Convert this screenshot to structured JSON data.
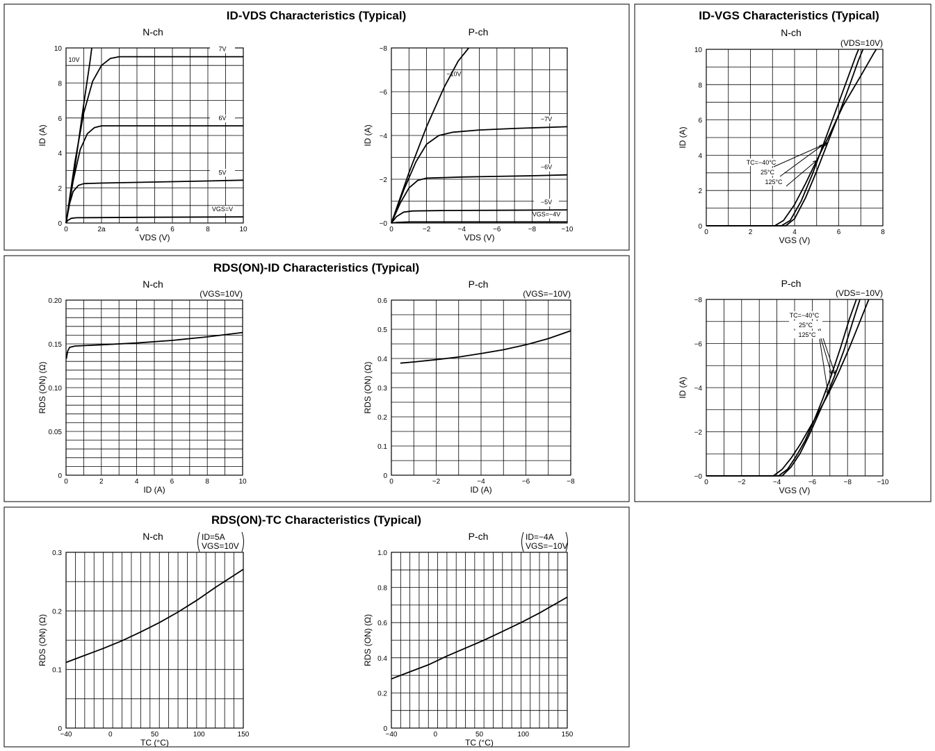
{
  "panels": [
    {
      "id": "p1",
      "title": "ID-VDS Characteristics (Typical)"
    },
    {
      "id": "p2",
      "title": "RDS(ON)-ID Characteristics (Typical)"
    },
    {
      "id": "p3",
      "title": "ID-VGS Characteristics (Typical)"
    },
    {
      "id": "p4",
      "title": "RDS(ON)-TC Characteristics (Typical)"
    }
  ],
  "chart_data": [
    {
      "id": "idvds_n",
      "type": "line",
      "subtitle": "N-ch",
      "condition": [],
      "xlabel": "VDS (V)",
      "ylabel": "ID (A)",
      "xlim": [
        0,
        10
      ],
      "ylim": [
        0,
        10
      ],
      "xticks": [
        "0",
        "2a",
        "4",
        "6",
        "8",
        "10"
      ],
      "yticks": [
        "0",
        "2",
        "4",
        "6",
        "8",
        "10"
      ],
      "grid": {
        "x": 10,
        "y": 10
      },
      "series": [
        {
          "name": "10V",
          "points": [
            [
              0,
              0
            ],
            [
              0.5,
              3.2
            ],
            [
              1.0,
              6.8
            ],
            [
              1.35,
              9.2
            ],
            [
              1.45,
              10
            ]
          ]
        },
        {
          "name": "7V",
          "points": [
            [
              0,
              0
            ],
            [
              0.5,
              3.5
            ],
            [
              1.0,
              6.3
            ],
            [
              1.5,
              8.1
            ],
            [
              2.0,
              9.0
            ],
            [
              2.5,
              9.4
            ],
            [
              3.0,
              9.5
            ],
            [
              4.0,
              9.5
            ],
            [
              6,
              9.5
            ],
            [
              8,
              9.5
            ],
            [
              10,
              9.5
            ]
          ]
        },
        {
          "name": "6V",
          "points": [
            [
              0,
              0
            ],
            [
              0.4,
              2.4
            ],
            [
              0.8,
              4.2
            ],
            [
              1.2,
              5.1
            ],
            [
              1.6,
              5.45
            ],
            [
              2.0,
              5.55
            ],
            [
              3,
              5.55
            ],
            [
              5,
              5.55
            ],
            [
              7,
              5.55
            ],
            [
              10,
              5.55
            ]
          ]
        },
        {
          "name": "5V",
          "points": [
            [
              0,
              0
            ],
            [
              0.2,
              1.1
            ],
            [
              0.4,
              1.8
            ],
            [
              0.7,
              2.15
            ],
            [
              1.0,
              2.25
            ],
            [
              2,
              2.28
            ],
            [
              4,
              2.32
            ],
            [
              6,
              2.36
            ],
            [
              8,
              2.4
            ],
            [
              10,
              2.45
            ]
          ]
        },
        {
          "name": "VGS=V",
          "points": [
            [
              0,
              0
            ],
            [
              0.1,
              0.15
            ],
            [
              0.3,
              0.27
            ],
            [
              0.6,
              0.3
            ],
            [
              2,
              0.31
            ],
            [
              5,
              0.33
            ],
            [
              10,
              0.35
            ]
          ]
        }
      ]
    },
    {
      "id": "idvds_p",
      "type": "line",
      "subtitle": "P-ch",
      "condition": [],
      "xlabel": "VDS (V)",
      "ylabel": "ID (A)",
      "xlim": [
        0,
        -10
      ],
      "ylim": [
        0,
        -8
      ],
      "xticks": [
        "0",
        "−2",
        "−4",
        "−6",
        "−8",
        "−10"
      ],
      "yticks": [
        "−0",
        "−2",
        "−4",
        "−6",
        "−8"
      ],
      "grid": {
        "x": 10,
        "y": 8
      },
      "series": [
        {
          "name": "−10V",
          "points": [
            [
              0,
              0
            ],
            [
              -1,
              -2.3
            ],
            [
              -2,
              -4.4
            ],
            [
              -3,
              -6.2
            ],
            [
              -3.8,
              -7.4
            ],
            [
              -4.4,
              -8
            ]
          ]
        },
        {
          "name": "−7V",
          "points": [
            [
              0,
              0
            ],
            [
              -0.7,
              -1.5
            ],
            [
              -1.4,
              -2.8
            ],
            [
              -2.0,
              -3.6
            ],
            [
              -2.7,
              -4.0
            ],
            [
              -3.5,
              -4.15
            ],
            [
              -5,
              -4.25
            ],
            [
              -7,
              -4.32
            ],
            [
              -10,
              -4.4
            ]
          ]
        },
        {
          "name": "−6V",
          "points": [
            [
              0,
              0
            ],
            [
              -0.5,
              -0.9
            ],
            [
              -1.0,
              -1.6
            ],
            [
              -1.5,
              -1.95
            ],
            [
              -2.0,
              -2.05
            ],
            [
              -4,
              -2.1
            ],
            [
              -6,
              -2.13
            ],
            [
              -8,
              -2.16
            ],
            [
              -10,
              -2.2
            ]
          ]
        },
        {
          "name": "−5V",
          "points": [
            [
              0,
              0
            ],
            [
              -0.3,
              -0.3
            ],
            [
              -0.7,
              -0.5
            ],
            [
              -1.2,
              -0.55
            ],
            [
              -3,
              -0.57
            ],
            [
              -6,
              -0.58
            ],
            [
              -10,
              -0.6
            ]
          ]
        },
        {
          "name": "VGS=−4V",
          "points": [
            [
              0,
              0
            ],
            [
              -0.3,
              -0.03
            ],
            [
              -1,
              -0.05
            ],
            [
              -10,
              -0.05
            ]
          ]
        }
      ]
    },
    {
      "id": "rdsid_n",
      "type": "line",
      "subtitle": "N-ch",
      "condition": [
        "(VGS=10V)"
      ],
      "xlabel": "ID (A)",
      "ylabel": "RDS (ON) (Ω)",
      "xlim": [
        0,
        10
      ],
      "ylim": [
        0,
        0.2
      ],
      "xticks": [
        "0",
        "2",
        "4",
        "6",
        "8",
        "10"
      ],
      "yticks": [
        "0",
        "0.05",
        "0.10",
        "0.15",
        "0.20"
      ],
      "grid": {
        "x": 10,
        "y": 20
      },
      "series": [
        {
          "name": "",
          "points": [
            [
              0.02,
              0.133
            ],
            [
              0.06,
              0.138
            ],
            [
              0.1,
              0.142
            ],
            [
              0.2,
              0.146
            ],
            [
              0.5,
              0.1475
            ],
            [
              1,
              0.148
            ],
            [
              2,
              0.149
            ],
            [
              4,
              0.151
            ],
            [
              6,
              0.154
            ],
            [
              8,
              0.158
            ],
            [
              10,
              0.163
            ]
          ]
        }
      ]
    },
    {
      "id": "rdsid_p",
      "type": "line",
      "subtitle": "P-ch",
      "condition": [
        "(VGS=−10V)"
      ],
      "xlabel": "ID (A)",
      "ylabel": "RDS (ON) (Ω)",
      "xlim": [
        0,
        -8
      ],
      "ylim": [
        0,
        0.6
      ],
      "xticks": [
        "0",
        "−2",
        "−4",
        "−6",
        "−8"
      ],
      "yticks": [
        "0",
        "0.1",
        "0.2",
        "0.3",
        "0.4",
        "0.5",
        "0.6"
      ],
      "grid": {
        "x": 8,
        "y": 12
      },
      "series": [
        {
          "name": "",
          "points": [
            [
              -0.4,
              0.384
            ],
            [
              -1,
              0.388
            ],
            [
              -2,
              0.396
            ],
            [
              -3,
              0.405
            ],
            [
              -4,
              0.417
            ],
            [
              -5,
              0.43
            ],
            [
              -6,
              0.447
            ],
            [
              -7,
              0.468
            ],
            [
              -8,
              0.495
            ]
          ]
        }
      ]
    },
    {
      "id": "idvgs_n",
      "type": "line",
      "subtitle": "N-ch",
      "condition": [
        "(VDS=10V)"
      ],
      "xlabel": "VGS (V)",
      "ylabel": "ID (A)",
      "xlim": [
        0,
        8
      ],
      "ylim": [
        0,
        10
      ],
      "xticks": [
        "0",
        "2",
        "4",
        "6",
        "8"
      ],
      "yticks": [
        "0",
        "2",
        "4",
        "6",
        "8",
        "10"
      ],
      "grid": {
        "x": 8,
        "y": 10
      },
      "annotations": [
        "TC=−40°C",
        "25°C",
        "125°C"
      ],
      "series": [
        {
          "name": "TC=−40°C",
          "points": [
            [
              0,
              0
            ],
            [
              3.6,
              0
            ],
            [
              4.0,
              0.4
            ],
            [
              4.5,
              1.6
            ],
            [
              5.0,
              3.1
            ],
            [
              5.5,
              4.7
            ],
            [
              6.0,
              6.3
            ],
            [
              6.5,
              8.0
            ],
            [
              6.9,
              9.4
            ],
            [
              7.1,
              10
            ]
          ]
        },
        {
          "name": "25°C",
          "points": [
            [
              0,
              0
            ],
            [
              3.4,
              0
            ],
            [
              3.8,
              0.3
            ],
            [
              4.3,
              1.4
            ],
            [
              4.8,
              2.9
            ],
            [
              5.3,
              4.6
            ],
            [
              5.8,
              6.3
            ],
            [
              6.3,
              8.0
            ],
            [
              6.8,
              9.7
            ],
            [
              6.9,
              10
            ]
          ]
        },
        {
          "name": "125°C",
          "points": [
            [
              0,
              0
            ],
            [
              3.1,
              0
            ],
            [
              3.5,
              0.3
            ],
            [
              4.0,
              1.2
            ],
            [
              4.5,
              2.4
            ],
            [
              5.0,
              3.7
            ],
            [
              5.6,
              5.2
            ],
            [
              6.2,
              6.8
            ],
            [
              7.0,
              8.5
            ],
            [
              7.6,
              9.8
            ],
            [
              7.7,
              10
            ]
          ]
        }
      ]
    },
    {
      "id": "idvgs_p",
      "type": "line",
      "subtitle": "P-ch",
      "condition": [
        "(VDS=−10V)"
      ],
      "xlabel": "VGS (V)",
      "ylabel": "ID (A)",
      "xlim": [
        0,
        -10
      ],
      "ylim": [
        0,
        -8
      ],
      "xticks": [
        "0",
        "−2",
        "−4",
        "−6",
        "−8",
        "−10"
      ],
      "yticks": [
        "−0",
        "−2",
        "−4",
        "−6",
        "−8"
      ],
      "grid": {
        "x": 10,
        "y": 8
      },
      "annotations": [
        "TC=−40°C",
        "25°C",
        "125°C"
      ],
      "series": [
        {
          "name": "TC=−40°C",
          "points": [
            [
              0,
              0
            ],
            [
              -4.3,
              0
            ],
            [
              -4.8,
              -0.4
            ],
            [
              -5.3,
              -1.0
            ],
            [
              -5.8,
              -1.8
            ],
            [
              -6.3,
              -2.7
            ],
            [
              -6.8,
              -3.6
            ],
            [
              -7.3,
              -4.6
            ],
            [
              -7.8,
              -5.7
            ],
            [
              -8.3,
              -7.0
            ],
            [
              -8.7,
              -8.0
            ]
          ]
        },
        {
          "name": "25°C",
          "points": [
            [
              0,
              0
            ],
            [
              -4.1,
              0
            ],
            [
              -4.6,
              -0.3
            ],
            [
              -5.1,
              -0.9
            ],
            [
              -5.6,
              -1.6
            ],
            [
              -6.1,
              -2.5
            ],
            [
              -6.6,
              -3.5
            ],
            [
              -7.1,
              -4.6
            ],
            [
              -7.6,
              -5.8
            ],
            [
              -8.1,
              -7.1
            ],
            [
              -8.5,
              -8.0
            ]
          ]
        },
        {
          "name": "125°C",
          "points": [
            [
              0,
              0
            ],
            [
              -3.8,
              0
            ],
            [
              -4.3,
              -0.3
            ],
            [
              -4.8,
              -0.8
            ],
            [
              -5.3,
              -1.4
            ],
            [
              -5.8,
              -2.1
            ],
            [
              -6.3,
              -2.8
            ],
            [
              -6.9,
              -3.7
            ],
            [
              -7.5,
              -4.7
            ],
            [
              -8.1,
              -5.8
            ],
            [
              -8.7,
              -7.0
            ],
            [
              -9.2,
              -8.0
            ]
          ]
        }
      ]
    },
    {
      "id": "rdstc_n",
      "type": "line",
      "subtitle": "N-ch",
      "condition": [
        "ID=5A",
        "VGS=10V"
      ],
      "xlabel": "TC (°C)",
      "ylabel": "RDS (ON) (Ω)",
      "xlim": [
        -40,
        150
      ],
      "ylim": [
        0,
        0.3
      ],
      "xticks": [
        "−40",
        "0",
        "50",
        "100",
        "150"
      ],
      "yticks": [
        "0",
        "0.1",
        "0.2",
        "0.3"
      ],
      "grid": {
        "x": 19,
        "y": 6
      },
      "series": [
        {
          "name": "",
          "points": [
            [
              -40,
              0.112
            ],
            [
              -20,
              0.124
            ],
            [
              0,
              0.136
            ],
            [
              20,
              0.149
            ],
            [
              40,
              0.164
            ],
            [
              60,
              0.18
            ],
            [
              80,
              0.198
            ],
            [
              100,
              0.218
            ],
            [
              120,
              0.24
            ],
            [
              150,
              0.271
            ]
          ]
        }
      ]
    },
    {
      "id": "rdstc_p",
      "type": "line",
      "subtitle": "P-ch",
      "condition": [
        "ID=−4A",
        "VGS=−10V"
      ],
      "xlabel": "TC (°C)",
      "ylabel": "RDS (ON) (Ω)",
      "xlim": [
        -40,
        150
      ],
      "ylim": [
        0,
        1.0
      ],
      "xticks": [
        "−40",
        "0",
        "50",
        "100",
        "150"
      ],
      "yticks": [
        "0",
        "0.2",
        "0.4",
        "0.6",
        "0.8",
        "1.0"
      ],
      "grid": {
        "x": 19,
        "y": 10
      },
      "series": [
        {
          "name": "",
          "points": [
            [
              -40,
              0.28
            ],
            [
              -20,
              0.32
            ],
            [
              0,
              0.36
            ],
            [
              20,
              0.41
            ],
            [
              40,
              0.455
            ],
            [
              60,
              0.5
            ],
            [
              80,
              0.55
            ],
            [
              100,
              0.6
            ],
            [
              120,
              0.655
            ],
            [
              150,
              0.745
            ]
          ]
        }
      ]
    }
  ]
}
